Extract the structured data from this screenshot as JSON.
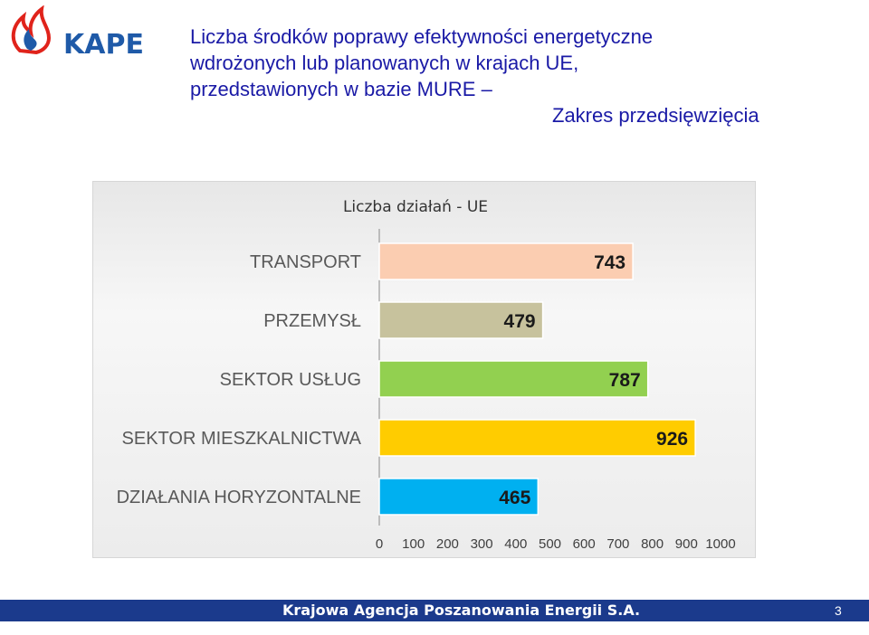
{
  "logo": {
    "text": "KAPE"
  },
  "title": {
    "line1": "Liczba środków poprawy efektywności energetyczne",
    "line2": "wdrożonych lub planowanych w  krajach UE,",
    "line3": "przedstawionych w bazie MURE –",
    "line4": "Zakres przedsięwzięcia"
  },
  "footer": {
    "text": "Krajowa Agencja Poszanowania Energii S.A.",
    "page": "3"
  },
  "chart_data": {
    "type": "bar",
    "orientation": "horizontal",
    "title": "Liczba działań - UE",
    "categories": [
      "TRANSPORT",
      "PRZEMYSŁ",
      "SEKTOR USŁUG",
      "SEKTOR MIESZKALNICTWA",
      "DZIAŁANIA HORYZONTALNE"
    ],
    "values": [
      743,
      479,
      787,
      926,
      465
    ],
    "colors": [
      "#fbcdb1",
      "#c7c29d",
      "#92d050",
      "#ffcc00",
      "#00b0f0"
    ],
    "xlim": [
      0,
      1000
    ],
    "xticks": [
      "0",
      "100",
      "200",
      "300",
      "400",
      "500",
      "600",
      "700",
      "800",
      "900",
      "1000"
    ],
    "grid": false,
    "data_labels": true
  }
}
